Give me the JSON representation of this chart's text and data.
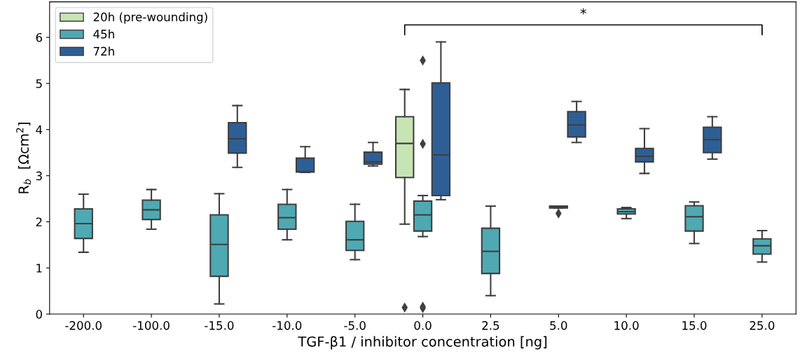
{
  "chart_data": {
    "type": "box",
    "xlabel": "TGF-β1 / inhibitor concentration [ng]",
    "ylabel": "R$_{b}$  [Ωcm$^{2}$]",
    "categories": [
      "-200.0",
      "-100.0",
      "-15.0",
      "-10.0",
      "-5.0",
      "0.0",
      "2.5",
      "5.0",
      "10.0",
      "15.0",
      "25.0"
    ],
    "ylim": [
      0,
      6.77
    ],
    "yticks": [
      0,
      1,
      2,
      3,
      4,
      5,
      6
    ],
    "legend": "top left",
    "grid": false,
    "marker": "diamond",
    "annotations": [
      "*"
    ],
    "series": [
      {
        "name": "20h (pre-wounding)",
        "color": "#c7e5b4",
        "boxes": [
          null,
          null,
          null,
          null,
          null,
          {
            "low": 1.95,
            "q1": 2.96,
            "median": 3.7,
            "q3": 4.28,
            "high": 4.87,
            "outliers": [
              0.14
            ]
          },
          null,
          null,
          null,
          null,
          null
        ]
      },
      {
        "name": "45h",
        "color": "#4ea9b3",
        "boxes": [
          {
            "low": 1.34,
            "q1": 1.64,
            "median": 1.96,
            "q3": 2.28,
            "high": 2.6
          },
          {
            "low": 1.84,
            "q1": 2.05,
            "median": 2.26,
            "q3": 2.47,
            "high": 2.7
          },
          {
            "low": 0.22,
            "q1": 0.82,
            "median": 1.51,
            "q3": 2.15,
            "high": 2.61
          },
          {
            "low": 1.61,
            "q1": 1.84,
            "median": 2.09,
            "q3": 2.38,
            "high": 2.7
          },
          {
            "low": 1.18,
            "q1": 1.38,
            "median": 1.61,
            "q3": 2.01,
            "high": 2.38
          },
          {
            "low": 1.68,
            "q1": 1.8,
            "median": 2.15,
            "q3": 2.45,
            "high": 2.57,
            "outliers": [
              5.5,
              3.69,
              0.13,
              0.16
            ]
          },
          {
            "low": 0.4,
            "q1": 0.88,
            "median": 1.36,
            "q3": 1.86,
            "high": 2.34
          },
          {
            "low": 2.3,
            "q1": 2.3,
            "median": 2.32,
            "q3": 2.34,
            "high": 2.34,
            "outliers": [
              2.18
            ]
          },
          {
            "low": 2.07,
            "q1": 2.17,
            "median": 2.22,
            "q3": 2.28,
            "high": 2.31
          },
          {
            "low": 1.53,
            "q1": 1.8,
            "median": 2.11,
            "q3": 2.35,
            "high": 2.43
          },
          {
            "low": 1.13,
            "q1": 1.3,
            "median": 1.48,
            "q3": 1.63,
            "high": 1.81
          }
        ]
      },
      {
        "name": "72h",
        "color": "#2d5f96",
        "boxes": [
          null,
          null,
          {
            "low": 3.18,
            "q1": 3.49,
            "median": 3.8,
            "q3": 4.15,
            "high": 4.52
          },
          {
            "low": 3.07,
            "q1": 3.08,
            "median": 3.09,
            "q3": 3.38,
            "high": 3.63
          },
          {
            "low": 3.21,
            "q1": 3.25,
            "median": 3.3,
            "q3": 3.51,
            "high": 3.72
          },
          {
            "low": 2.48,
            "q1": 2.57,
            "median": 3.45,
            "q3": 5.01,
            "high": 5.9
          },
          null,
          {
            "low": 3.72,
            "q1": 3.84,
            "median": 4.1,
            "q3": 4.39,
            "high": 4.61
          },
          {
            "low": 3.05,
            "q1": 3.3,
            "median": 3.42,
            "q3": 3.59,
            "high": 4.02
          },
          {
            "low": 3.36,
            "q1": 3.5,
            "median": 3.78,
            "q3": 4.05,
            "high": 4.28
          },
          null
        ]
      }
    ]
  }
}
